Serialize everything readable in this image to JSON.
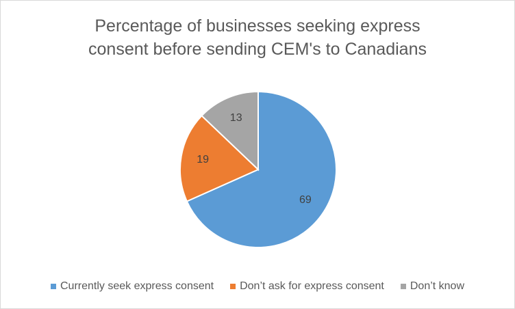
{
  "chart_data": {
    "type": "pie",
    "title": "Percentage of businesses seeking express\nconsent before sending CEM's to Canadians",
    "categories": [
      "Currently seek express consent",
      "Don’t ask for express consent",
      "Don’t know"
    ],
    "values": [
      69,
      19,
      13
    ],
    "data_labels": [
      "69",
      "19",
      "13"
    ],
    "colors": [
      "#5b9bd5",
      "#ed7d31",
      "#a5a5a5"
    ],
    "legend_position": "bottom"
  }
}
